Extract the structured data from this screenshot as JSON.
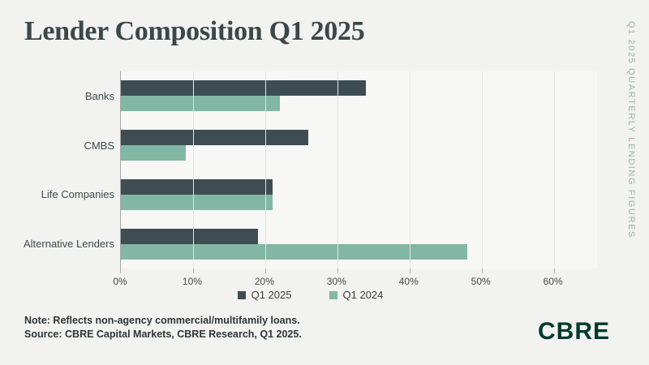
{
  "header": {
    "title": "Lender Composition Q1 2025"
  },
  "side_label": "Q1 2025 QUARTERLY LENDING FIGURES",
  "chart_data": {
    "type": "bar",
    "orientation": "horizontal",
    "title": "Lender Composition Q1 2025",
    "categories": [
      "Banks",
      "CMBS",
      "Life Companies",
      "Alternative Lenders"
    ],
    "series": [
      {
        "name": "Q1 2025",
        "color": "#3e4d51",
        "values": [
          34,
          26,
          21,
          19
        ]
      },
      {
        "name": "Q1 2024",
        "color": "#82b7a5",
        "values": [
          22,
          9,
          21,
          48
        ]
      }
    ],
    "x_ticks": [
      0,
      10,
      20,
      30,
      40,
      50,
      60
    ],
    "x_tick_suffix": "%",
    "xlim": [
      0,
      66
    ],
    "grid": true,
    "legend_position": "bottom"
  },
  "footer": {
    "note": "Note: Reflects non-agency commercial/multifamily loans.",
    "source": "Source: CBRE Capital Markets, CBRE Research, Q1 2025.",
    "logo": "CBRE"
  },
  "colors": {
    "background": "#f2f2f0",
    "plot_background": "#f7f7f5",
    "gridline": "#e2e2e0",
    "axis": "#a6a6a4",
    "title_text": "#3b4749",
    "side_label_text": "#9cb4aa",
    "logo_green": "#003a2d"
  }
}
